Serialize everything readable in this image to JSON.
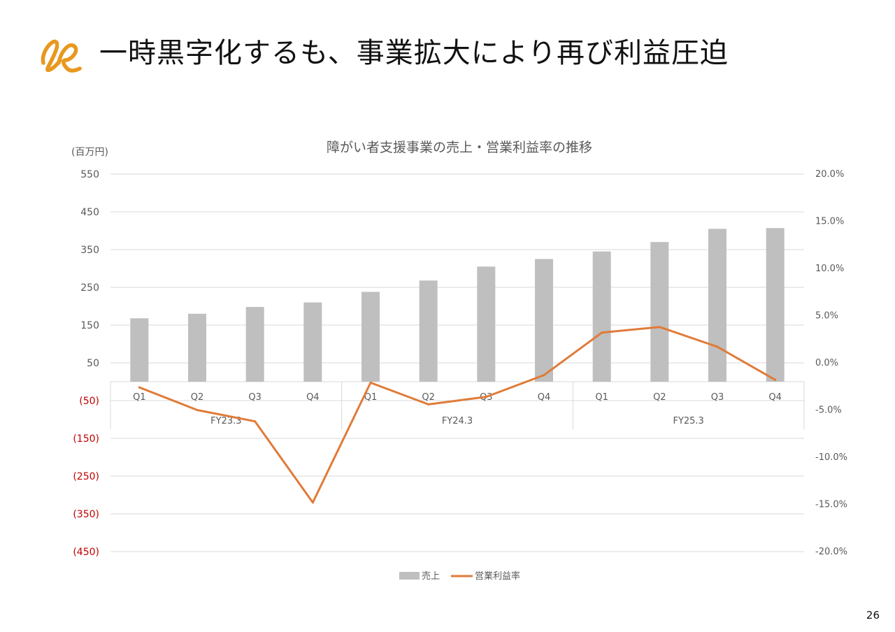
{
  "slide": {
    "title": "一時黒字化するも、事業拡大により再び利益圧迫",
    "page_number": "26",
    "logo_icon": "orange-loop-logo-icon"
  },
  "colors": {
    "accent": "#e8981f",
    "bar": "#bfbfbf",
    "line": "#e07b39",
    "negative_label": "#c00000"
  },
  "chart_data": {
    "type": "bar+line",
    "title": "障がい者支援事業の売上・営業利益率の推移",
    "left_axis_unit": "(百万円)",
    "left_axis": {
      "range": [
        -450,
        550
      ],
      "ticks": [
        550,
        450,
        350,
        250,
        150,
        50,
        -50,
        -150,
        -250,
        -350,
        -450
      ],
      "tick_labels": [
        "550",
        "450",
        "350",
        "250",
        "150",
        "50",
        "(50)",
        "(150)",
        "(250)",
        "(350)",
        "(450)"
      ]
    },
    "right_axis": {
      "range": [
        -20,
        20
      ],
      "ticks": [
        20,
        15,
        10,
        5,
        0,
        -5,
        -10,
        -15,
        -20
      ],
      "tick_labels": [
        "20.0%",
        "15.0%",
        "10.0%",
        "5.0%",
        "0.0%",
        "-5.0%",
        "-10.0%",
        "-15.0%",
        "-20.0%"
      ]
    },
    "categories": [
      "Q1",
      "Q2",
      "Q3",
      "Q4",
      "Q1",
      "Q2",
      "Q3",
      "Q4",
      "Q1",
      "Q2",
      "Q3",
      "Q4"
    ],
    "fiscal_years": [
      "FY23.3",
      "FY24.3",
      "FY25.3"
    ],
    "series": [
      {
        "name": "売上",
        "type": "bar",
        "axis": "left",
        "values": [
          168,
          180,
          198,
          210,
          238,
          268,
          305,
          325,
          345,
          370,
          405,
          407
        ]
      },
      {
        "name": "営業利益率",
        "type": "line",
        "axis": "right",
        "values": [
          -2.6,
          -5.0,
          -6.2,
          -14.8,
          -2.1,
          -4.4,
          -3.6,
          -1.3,
          3.2,
          3.8,
          1.7,
          -1.8
        ]
      }
    ],
    "grid": true,
    "legend": "bottom-center"
  }
}
